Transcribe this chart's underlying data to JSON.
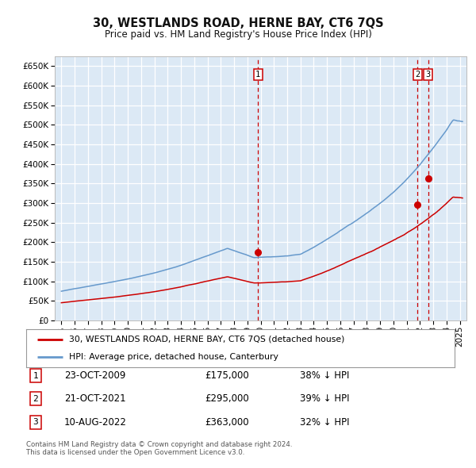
{
  "title": "30, WESTLANDS ROAD, HERNE BAY, CT6 7QS",
  "subtitle": "Price paid vs. HM Land Registry's House Price Index (HPI)",
  "background_color": "#ffffff",
  "plot_bg_color": "#dce9f5",
  "grid_color": "#ffffff",
  "hpi_color": "#6699cc",
  "price_color": "#cc0000",
  "vline_color": "#cc0000",
  "ylim": [
    0,
    675000
  ],
  "yticks": [
    0,
    50000,
    100000,
    150000,
    200000,
    250000,
    300000,
    350000,
    400000,
    450000,
    500000,
    550000,
    600000,
    650000
  ],
  "transactions": [
    {
      "label": "1",
      "date": "23-OCT-2009",
      "price": 175000,
      "pct": "38% ↓ HPI",
      "x_year": 2009.81
    },
    {
      "label": "2",
      "date": "21-OCT-2021",
      "price": 295000,
      "pct": "39% ↓ HPI",
      "x_year": 2021.81
    },
    {
      "label": "3",
      "date": "10-AUG-2022",
      "price": 363000,
      "pct": "32% ↓ HPI",
      "x_year": 2022.61
    }
  ],
  "legend_line1": "30, WESTLANDS ROAD, HERNE BAY, CT6 7QS (detached house)",
  "legend_line2": "HPI: Average price, detached house, Canterbury",
  "footer1": "Contains HM Land Registry data © Crown copyright and database right 2024.",
  "footer2": "This data is licensed under the Open Government Licence v3.0.",
  "xlim_start": 1994.5,
  "xlim_end": 2025.5
}
